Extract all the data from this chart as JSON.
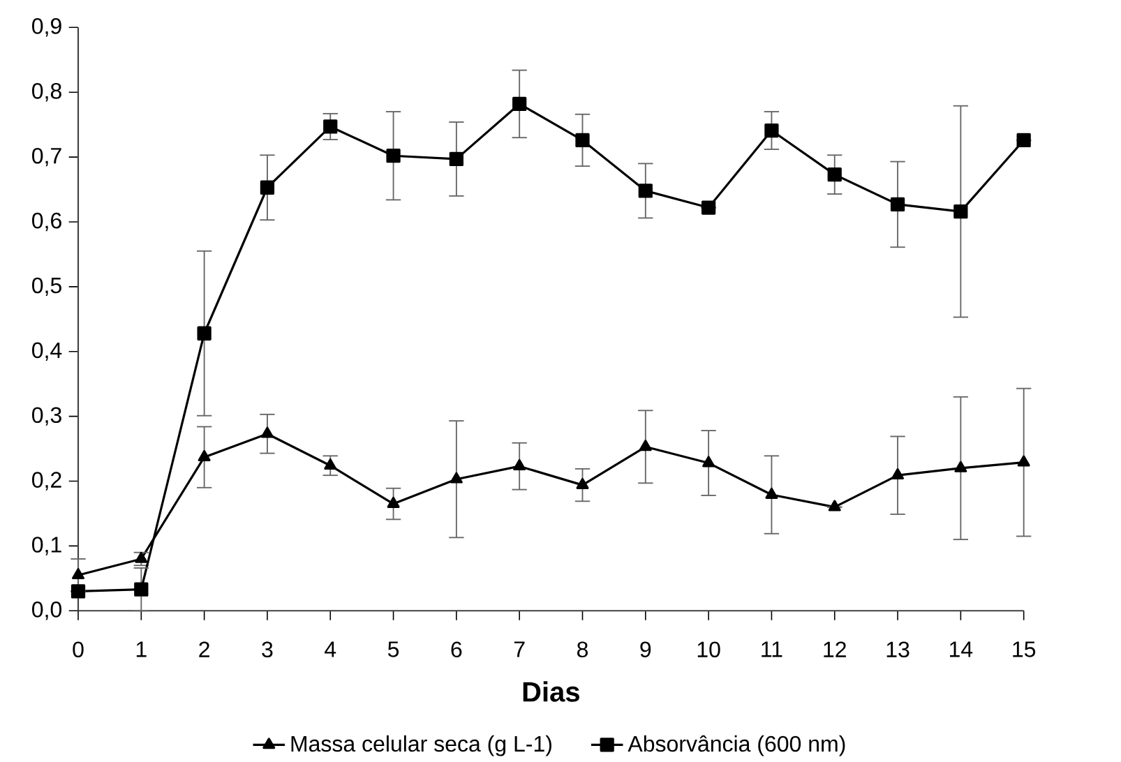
{
  "chart_data": {
    "type": "line",
    "xlabel": "Dias",
    "x": [
      0,
      1,
      2,
      3,
      4,
      5,
      6,
      7,
      8,
      9,
      10,
      11,
      12,
      13,
      14,
      15
    ],
    "xlim": [
      0,
      15
    ],
    "xticks": [
      0,
      1,
      2,
      3,
      4,
      5,
      6,
      7,
      8,
      9,
      10,
      11,
      12,
      13,
      14,
      15
    ],
    "ylim": [
      0,
      0.9
    ],
    "yticks": [
      {
        "value": 0,
        "label": "0,0"
      },
      {
        "value": 0.1,
        "label": "0,1"
      },
      {
        "value": 0.2,
        "label": "0,2"
      },
      {
        "value": 0.3,
        "label": "0,3"
      },
      {
        "value": 0.4,
        "label": "0,4"
      },
      {
        "value": 0.5,
        "label": "0,5"
      },
      {
        "value": 0.6,
        "label": "0,6"
      },
      {
        "value": 0.7,
        "label": "0,7"
      },
      {
        "value": 0.8,
        "label": "0,8"
      },
      {
        "value": 0.9,
        "label": "0,9"
      }
    ],
    "grid": false,
    "legend": "bottom",
    "series": [
      {
        "name": "Massa celular seca (g L-1)",
        "color": "#000000",
        "marker": "triangle",
        "values": [
          0.055,
          0.08,
          0.237,
          0.273,
          0.224,
          0.165,
          0.203,
          0.223,
          0.194,
          0.253,
          0.228,
          0.179,
          0.16,
          0.209,
          0.22,
          0.229
        ],
        "errors": [
          0.025,
          0.01,
          0.047,
          0.03,
          0.015,
          0.024,
          0.09,
          0.036,
          0.025,
          0.056,
          0.05,
          0.06,
          null,
          0.06,
          0.11,
          0.114
        ]
      },
      {
        "name": "Absorvância (600 nm)",
        "color": "#000000",
        "marker": "square",
        "values": [
          0.03,
          0.033,
          0.428,
          0.653,
          0.747,
          0.702,
          0.697,
          0.782,
          0.726,
          0.648,
          0.622,
          0.741,
          0.673,
          0.627,
          0.616,
          0.726
        ],
        "errors": [
          null,
          0.033,
          0.127,
          0.05,
          0.02,
          0.068,
          0.057,
          0.052,
          0.04,
          0.042,
          null,
          0.029,
          0.03,
          0.066,
          0.163,
          null
        ]
      }
    ]
  }
}
